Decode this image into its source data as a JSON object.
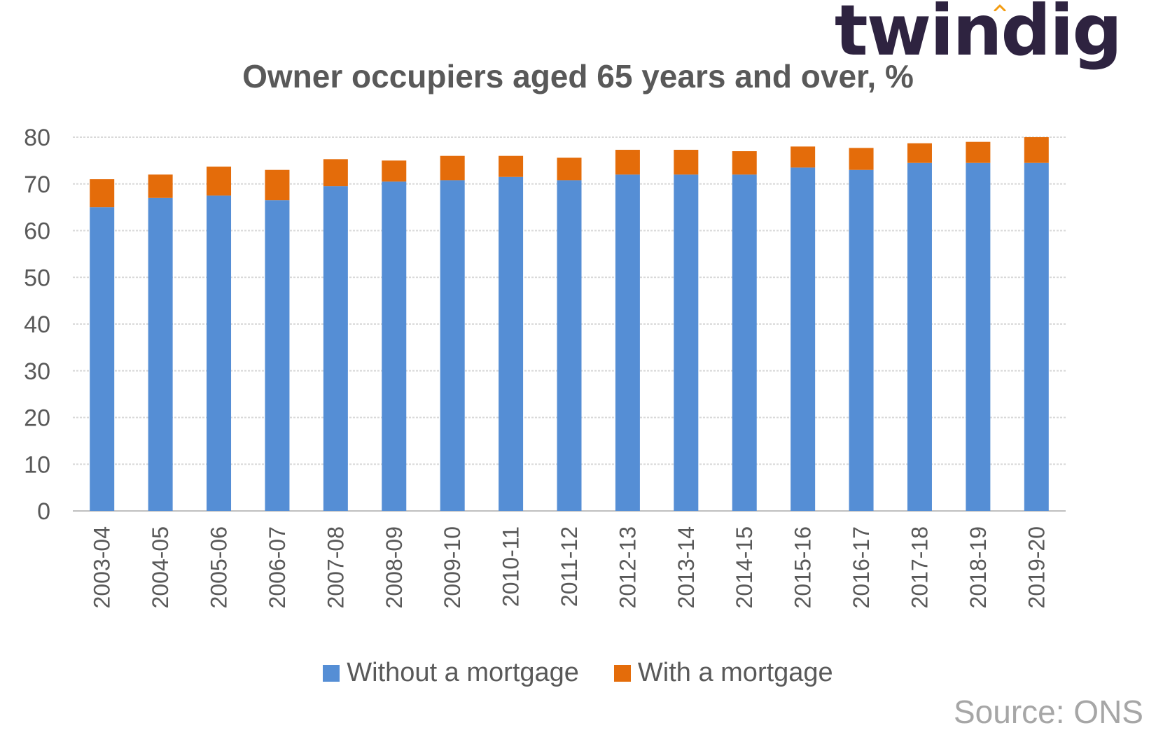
{
  "brand": {
    "logo_text": "twindig",
    "accent_color": "#f39c12",
    "text_color": "#2e2340"
  },
  "title": "Owner occupiers aged 65 years and over, %",
  "source": "Source: ONS",
  "chart_data": {
    "type": "bar",
    "stacked": true,
    "categories": [
      "2003-04",
      "2004-05",
      "2005-06",
      "2006-07",
      "2007-08",
      "2008-09",
      "2009-10",
      "2010-11",
      "2011-12",
      "2012-13",
      "2013-14",
      "2014-15",
      "2015-16",
      "2016-17",
      "2017-18",
      "2018-19",
      "2019-20"
    ],
    "series": [
      {
        "name": "Without a mortgage",
        "color": "#558ed5",
        "values": [
          65,
          67,
          67.5,
          66.5,
          69.5,
          70.5,
          70.8,
          71.5,
          70.8,
          72,
          72,
          72,
          73.5,
          73,
          74.5,
          74.5,
          74.5
        ]
      },
      {
        "name": "With a mortgage",
        "color": "#e46c0a",
        "values": [
          6,
          5,
          6.2,
          6.5,
          5.8,
          4.5,
          5.2,
          4.5,
          4.8,
          5.3,
          5.3,
          5,
          4.5,
          4.7,
          4.2,
          4.5,
          5.5
        ]
      }
    ],
    "ylim": [
      0,
      80
    ],
    "yticks": [
      0,
      10,
      20,
      30,
      40,
      50,
      60,
      70,
      80
    ],
    "grid": true,
    "legend_position": "bottom"
  }
}
